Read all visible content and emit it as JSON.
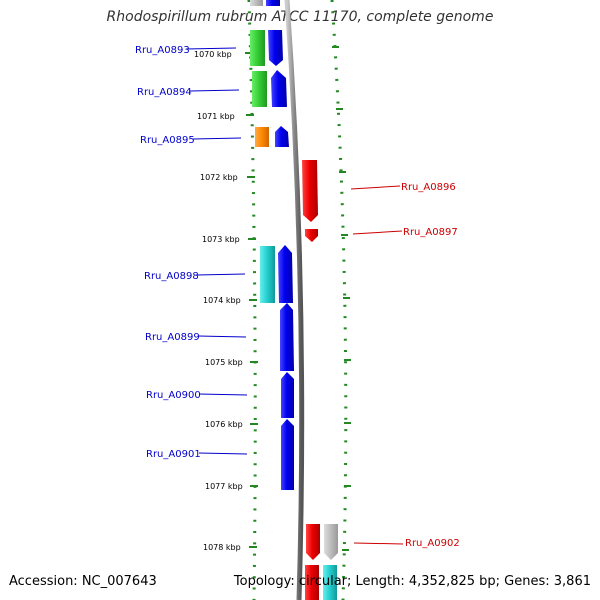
{
  "header": {
    "title": "Rhodospirillum rubrum ATCC 11170, complete genome"
  },
  "footer": {
    "accession": "Accession: NC_007643",
    "topology": "Topology: circular; Length: 4,352,825 bp; Genes: 3,861"
  },
  "ruler": {
    "ticks": [
      {
        "label": "1070 kbp"
      },
      {
        "label": "1071 kbp"
      },
      {
        "label": "1072 kbp"
      },
      {
        "label": "1073 kbp"
      },
      {
        "label": "1074 kbp"
      },
      {
        "label": "1075 kbp"
      },
      {
        "label": "1076 kbp"
      },
      {
        "label": "1077 kbp"
      },
      {
        "label": "1078 kbp"
      }
    ]
  },
  "genes": {
    "left": [
      {
        "name": "Rru_A0893",
        "color": "#0000cc"
      },
      {
        "name": "Rru_A0894",
        "color": "#0000cc"
      },
      {
        "name": "Rru_A0895",
        "color": "#0000cc"
      },
      {
        "name": "Rru_A0898",
        "color": "#0000cc"
      },
      {
        "name": "Rru_A0899",
        "color": "#0000cc"
      },
      {
        "name": "Rru_A0900",
        "color": "#0000cc"
      },
      {
        "name": "Rru_A0901",
        "color": "#0000cc"
      }
    ],
    "right": [
      {
        "name": "Rru_A0896",
        "color": "#cc0000"
      },
      {
        "name": "Rru_A0897",
        "color": "#cc0000"
      },
      {
        "name": "Rru_A0902",
        "color": "#cc0000"
      }
    ]
  },
  "colors": {
    "forward_strand": "#0000ee",
    "reverse_strand": "#ee0000",
    "cog_green": "#33cc33",
    "cog_orange": "#ff8800",
    "cog_cyan": "#22cccc",
    "cog_gray": "#aaaaaa",
    "ruler_dots": "#228822",
    "backbone": "#888888"
  }
}
